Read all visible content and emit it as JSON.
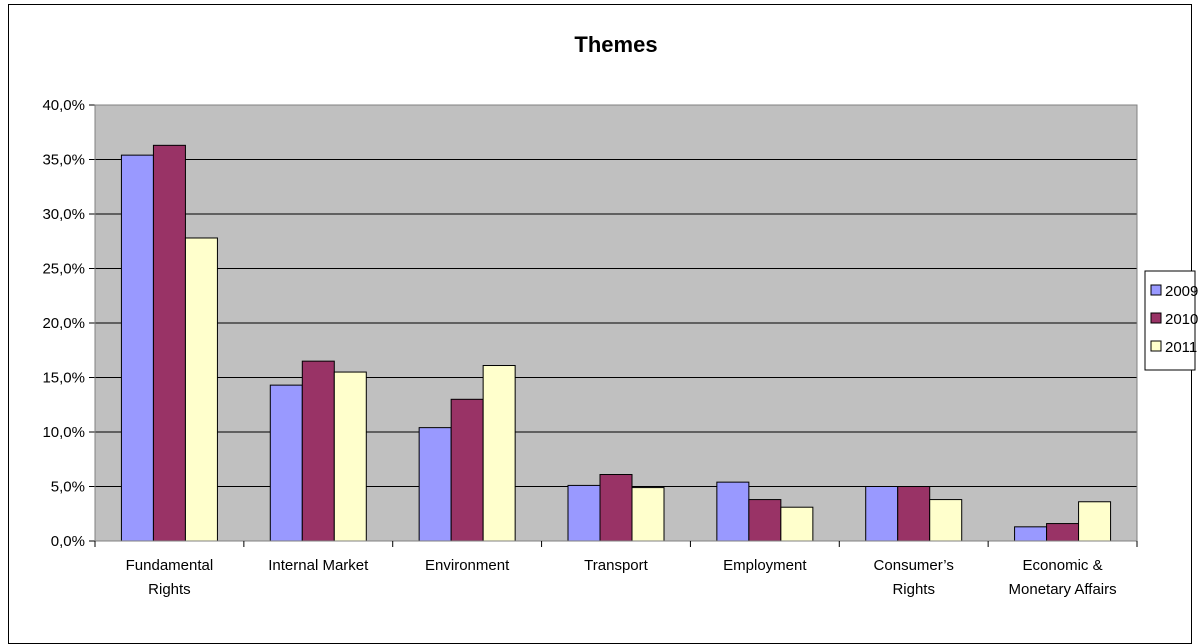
{
  "chart_data": {
    "type": "bar",
    "title": "Themes",
    "categories": [
      [
        "Fundamental",
        "Rights"
      ],
      [
        "Internal Market"
      ],
      [
        "Environment"
      ],
      [
        "Transport"
      ],
      [
        "Employment"
      ],
      [
        "Consumer’s",
        "Rights"
      ],
      [
        "Economic &",
        "Monetary Affairs"
      ]
    ],
    "series": [
      {
        "name": "2009",
        "color": "#9999ff",
        "values": [
          35.4,
          14.3,
          10.4,
          5.1,
          5.4,
          5.0,
          1.3
        ]
      },
      {
        "name": "2010",
        "color": "#993366",
        "values": [
          36.3,
          16.5,
          13.0,
          6.1,
          3.8,
          5.0,
          1.6
        ]
      },
      {
        "name": "2011",
        "color": "#ffffcc",
        "values": [
          27.8,
          15.5,
          16.1,
          4.9,
          3.1,
          3.8,
          3.6
        ]
      }
    ],
    "yticks": [
      "0,0%",
      "5,0%",
      "10,0%",
      "15,0%",
      "20,0%",
      "25,0%",
      "30,0%",
      "35,0%",
      "40,0%"
    ],
    "ylim": [
      0,
      40
    ],
    "ytick_step": 5,
    "grid": true,
    "legend_position": "right",
    "plot_background": "#c0c0c0"
  }
}
